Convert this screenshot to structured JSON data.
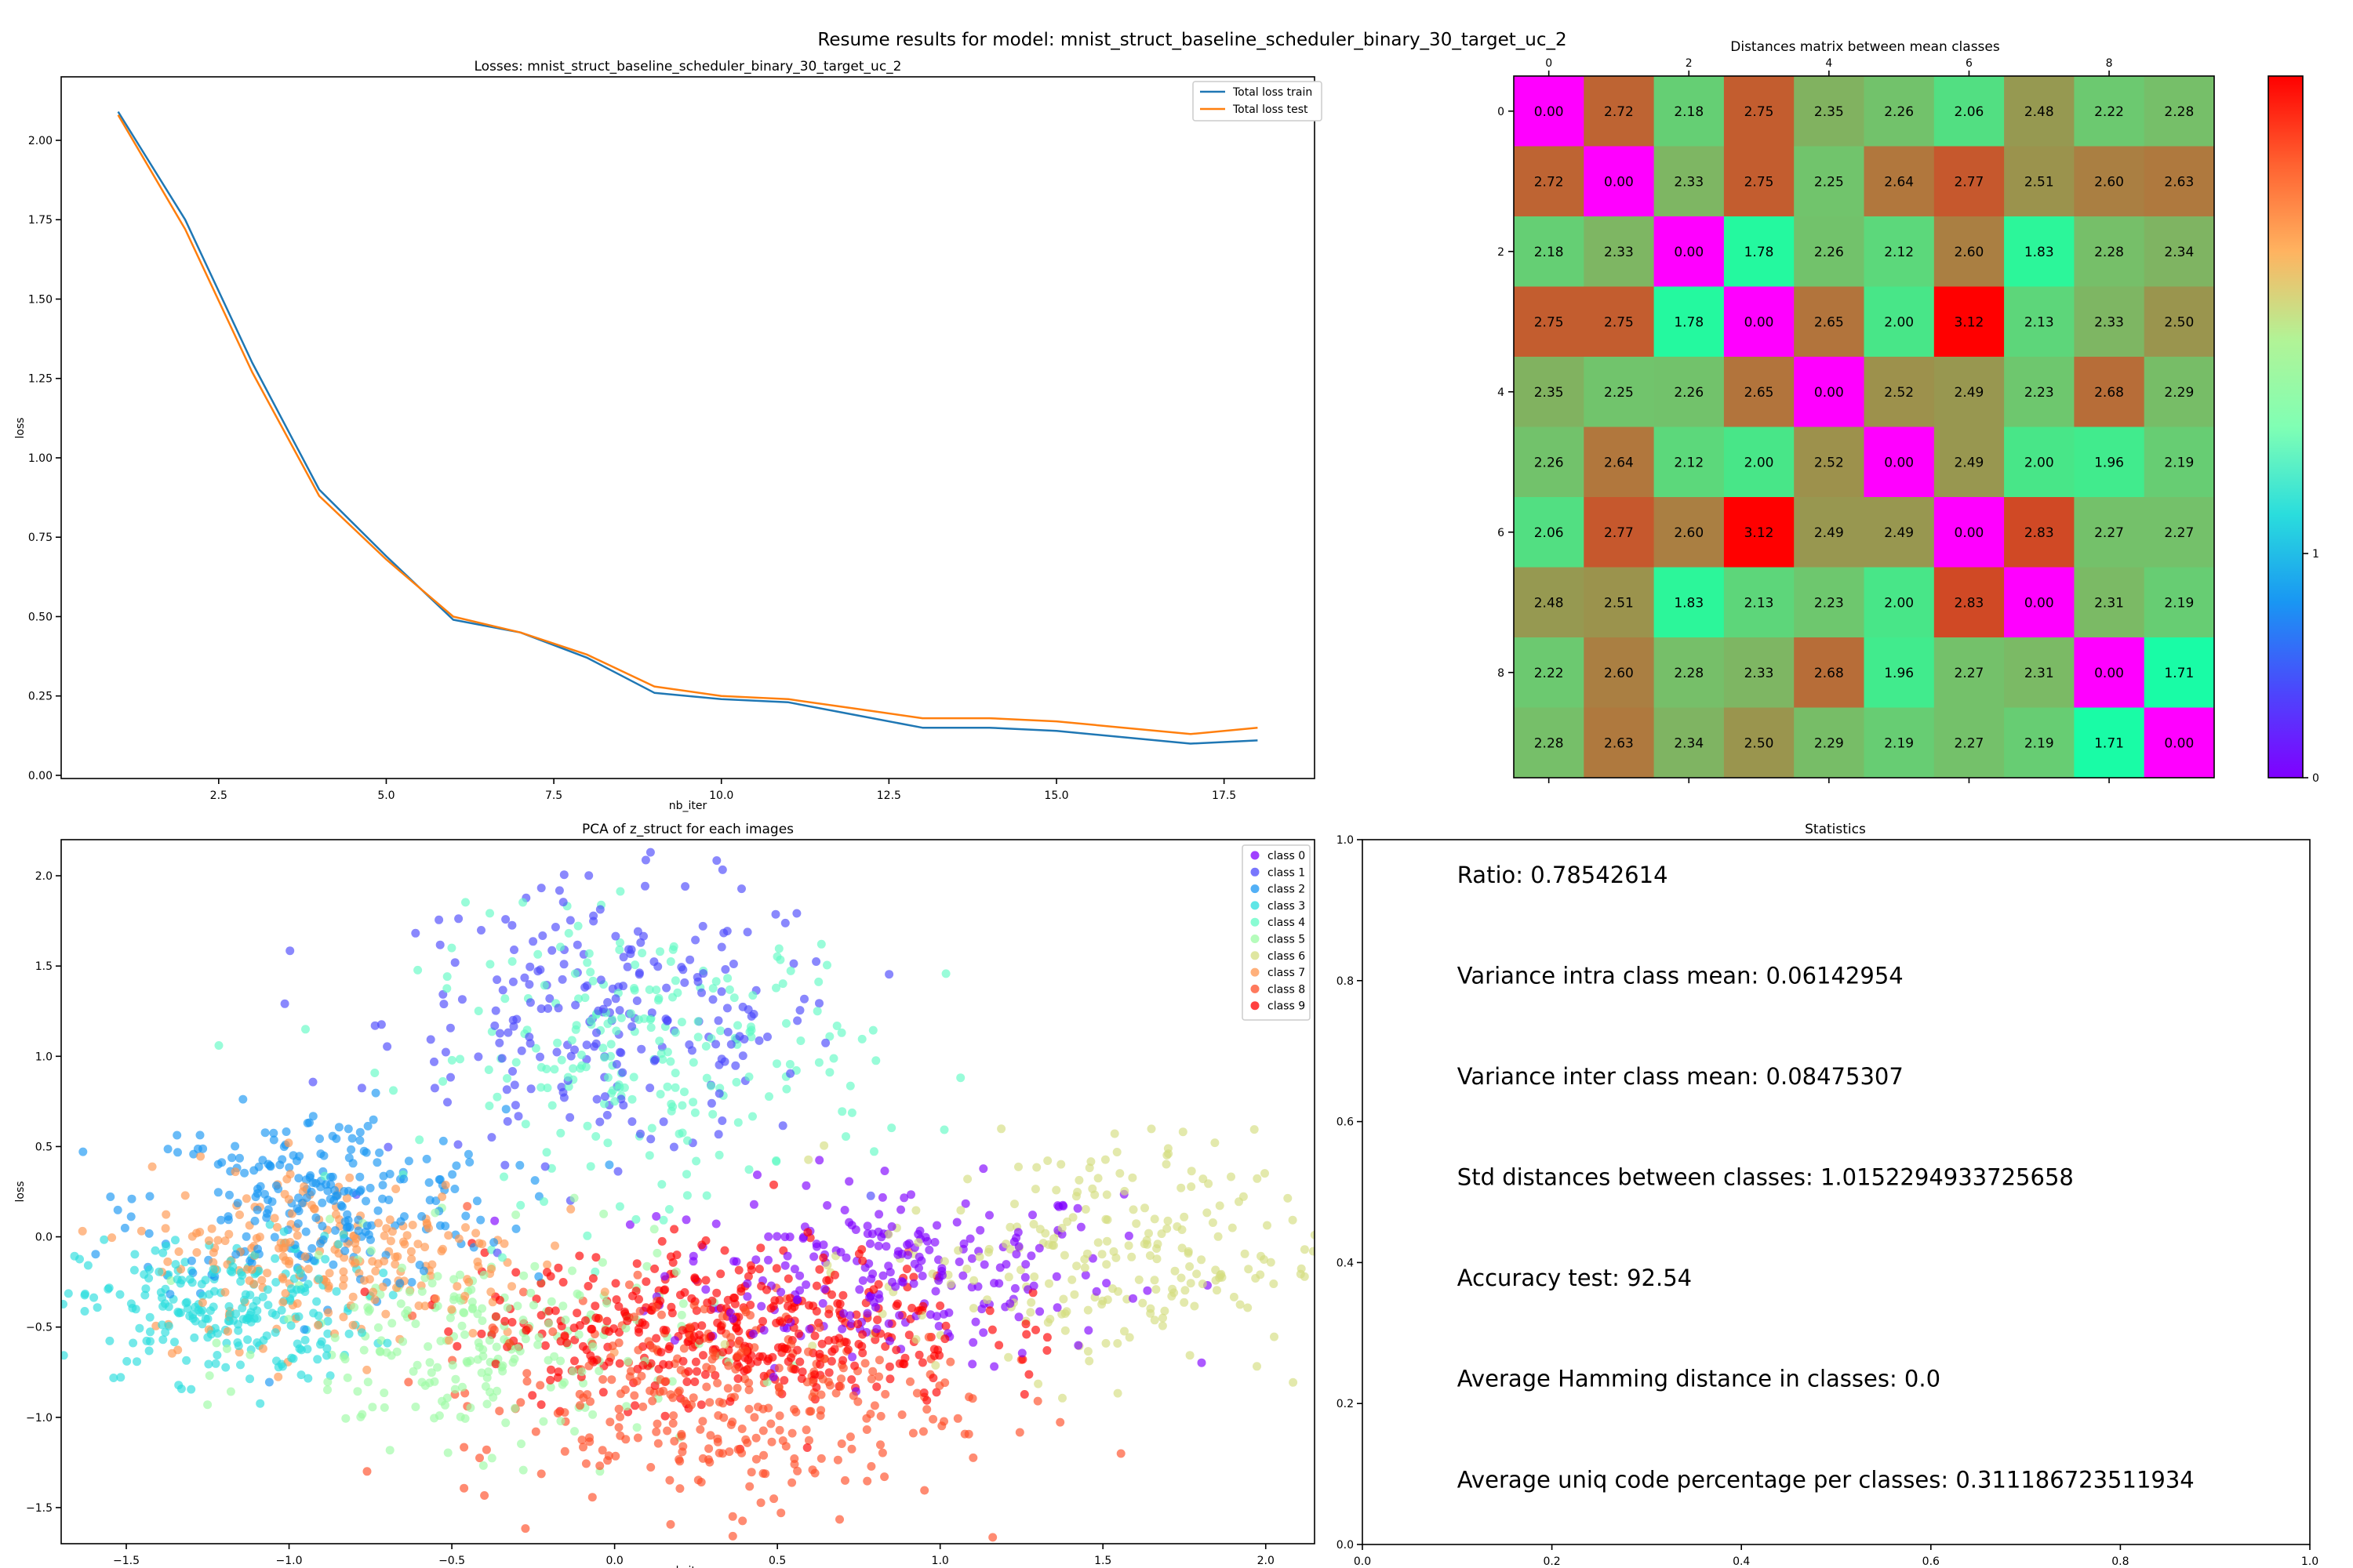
{
  "suptitle": "Resume results for model: mnist_struct_baseline_scheduler_binary_30_target_uc_2",
  "chart_data": [
    {
      "type": "line",
      "title": "Losses: mnist_struct_baseline_scheduler_binary_30_target_uc_2",
      "xlabel": "nb_iter",
      "ylabel": "loss",
      "xlim": [
        0.15,
        18.85
      ],
      "ylim": [
        -0.01,
        2.2
      ],
      "xticks": [
        2.5,
        5.0,
        7.5,
        10.0,
        12.5,
        15.0,
        17.5
      ],
      "xtick_labels": [
        "2.5",
        "5.0",
        "7.5",
        "10.0",
        "12.5",
        "15.0",
        "17.5"
      ],
      "yticks": [
        0.0,
        0.25,
        0.5,
        0.75,
        1.0,
        1.25,
        1.5,
        1.75,
        2.0
      ],
      "ytick_labels": [
        "0.00",
        "0.25",
        "0.50",
        "0.75",
        "1.00",
        "1.25",
        "1.50",
        "1.75",
        "2.00"
      ],
      "legend": "top-right",
      "x": [
        1,
        2,
        3,
        4,
        5,
        6,
        7,
        8,
        9,
        10,
        11,
        12,
        13,
        14,
        15,
        16,
        17,
        18
      ],
      "series": [
        {
          "name": "Total loss train",
          "color": "#1f77b4",
          "values": [
            2.09,
            1.75,
            1.3,
            0.9,
            0.69,
            0.49,
            0.45,
            0.37,
            0.26,
            0.24,
            0.23,
            0.19,
            0.15,
            0.15,
            0.14,
            0.12,
            0.1,
            0.11
          ]
        },
        {
          "name": "Total loss test",
          "color": "#ff7f0e",
          "values": [
            2.08,
            1.72,
            1.27,
            0.88,
            0.68,
            0.5,
            0.45,
            0.38,
            0.28,
            0.25,
            0.24,
            0.21,
            0.18,
            0.18,
            0.17,
            0.15,
            0.13,
            0.15
          ]
        }
      ]
    },
    {
      "type": "heatmap",
      "title": "Distances matrix between mean classes",
      "xticks": [
        0,
        2,
        4,
        6,
        8
      ],
      "xtick_labels": [
        "0",
        "2",
        "4",
        "6",
        "8"
      ],
      "yticks": [
        0,
        2,
        4,
        6,
        8
      ],
      "ytick_labels": [
        "0",
        "2",
        "4",
        "6",
        "8"
      ],
      "colormap": "rainbow",
      "colorbar_ticks": [
        0,
        1
      ],
      "colorbar_tick_labels": [
        "0",
        "1"
      ],
      "values": [
        [
          0.0,
          2.72,
          2.18,
          2.75,
          2.35,
          2.26,
          2.06,
          2.48,
          2.22,
          2.28
        ],
        [
          2.72,
          0.0,
          2.33,
          2.75,
          2.25,
          2.64,
          2.77,
          2.51,
          2.6,
          2.63
        ],
        [
          2.18,
          2.33,
          0.0,
          1.78,
          2.26,
          2.12,
          2.6,
          1.83,
          2.28,
          2.34
        ],
        [
          2.75,
          2.75,
          1.78,
          0.0,
          2.65,
          2.0,
          3.12,
          2.13,
          2.33,
          2.5
        ],
        [
          2.35,
          2.25,
          2.26,
          2.65,
          0.0,
          2.52,
          2.49,
          2.23,
          2.68,
          2.29
        ],
        [
          2.26,
          2.64,
          2.12,
          2.0,
          2.52,
          0.0,
          2.49,
          2.0,
          1.96,
          2.19
        ],
        [
          2.06,
          2.77,
          2.6,
          3.12,
          2.49,
          2.49,
          0.0,
          2.83,
          2.27,
          2.27
        ],
        [
          2.48,
          2.51,
          1.83,
          2.13,
          2.23,
          2.0,
          2.83,
          0.0,
          2.31,
          2.19
        ],
        [
          2.22,
          2.6,
          2.28,
          2.33,
          2.68,
          1.96,
          2.27,
          2.31,
          0.0,
          1.71
        ],
        [
          2.28,
          2.63,
          2.34,
          2.5,
          2.29,
          2.19,
          2.27,
          2.19,
          1.71,
          0.0
        ]
      ]
    },
    {
      "type": "scatter",
      "title": "PCA of z_struct for each images",
      "xlabel": "nb_iter",
      "ylabel": "loss",
      "xlim": [
        -1.7,
        2.15
      ],
      "ylim": [
        -1.7,
        2.2
      ],
      "xticks": [
        -1.5,
        -1.0,
        -0.5,
        0.0,
        0.5,
        1.0,
        1.5,
        2.0
      ],
      "xtick_labels": [
        "−1.5",
        "−1.0",
        "−0.5",
        "0.0",
        "0.5",
        "1.0",
        "1.5",
        "2.0"
      ],
      "yticks": [
        -1.5,
        -1.0,
        -0.5,
        0.0,
        0.5,
        1.0,
        1.5,
        2.0
      ],
      "ytick_labels": [
        "−1.5",
        "−1.0",
        "−0.5",
        "0.0",
        "0.5",
        "1.0",
        "1.5",
        "2.0"
      ],
      "legend": "top-right",
      "series": [
        {
          "name": "class 0",
          "color": "#8000ff",
          "center": [
            0.85,
            -0.2
          ],
          "spread": [
            0.35,
            0.25
          ]
        },
        {
          "name": "class 1",
          "color": "#4b48fc",
          "center": [
            0.0,
            1.2
          ],
          "spread": [
            0.35,
            0.38
          ]
        },
        {
          "name": "class 2",
          "color": "#1996f3",
          "center": [
            -0.9,
            0.2
          ],
          "spread": [
            0.28,
            0.25
          ]
        },
        {
          "name": "class 3",
          "color": "#2adddd",
          "center": [
            -1.2,
            -0.4
          ],
          "spread": [
            0.22,
            0.2
          ]
        },
        {
          "name": "class 4",
          "color": "#62fbc4",
          "center": [
            0.1,
            1.0
          ],
          "spread": [
            0.35,
            0.38
          ]
        },
        {
          "name": "class 5",
          "color": "#9cfba4",
          "center": [
            -0.4,
            -0.6
          ],
          "spread": [
            0.32,
            0.28
          ]
        },
        {
          "name": "class 6",
          "color": "#d4dd80",
          "center": [
            1.5,
            -0.1
          ],
          "spread": [
            0.35,
            0.33
          ]
        },
        {
          "name": "class 7",
          "color": "#ff964f",
          "center": [
            -0.85,
            -0.1
          ],
          "spread": [
            0.3,
            0.25
          ]
        },
        {
          "name": "class 8",
          "color": "#ff4d27",
          "center": [
            0.3,
            -0.9
          ],
          "spread": [
            0.38,
            0.3
          ]
        },
        {
          "name": "class 9",
          "color": "#ff0000",
          "center": [
            0.35,
            -0.5
          ],
          "spread": [
            0.38,
            0.22
          ]
        }
      ]
    },
    {
      "type": "table",
      "title": "Statistics",
      "xlim": [
        0,
        1
      ],
      "ylim": [
        0,
        1
      ],
      "xticks": [
        0,
        0.2,
        0.4,
        0.6,
        0.8,
        1.0
      ],
      "xtick_labels": [
        "0.0",
        "0.2",
        "0.4",
        "0.6",
        "0.8",
        "1.0"
      ],
      "yticks": [
        0,
        0.2,
        0.4,
        0.6,
        0.8,
        1.0
      ],
      "ytick_labels": [
        "0.0",
        "0.2",
        "0.4",
        "0.6",
        "0.8",
        "1.0"
      ],
      "lines": [
        "Ratio: 0.78542614",
        "Variance intra class mean: 0.06142954",
        "Variance inter class mean: 0.08475307",
        "Std distances between classes: 1.0152294933725658",
        "Accuracy test: 92.54",
        "Average Hamming distance in classes: 0.0",
        "Average uniq code percentage per classes: 0.311186723511934"
      ]
    }
  ]
}
